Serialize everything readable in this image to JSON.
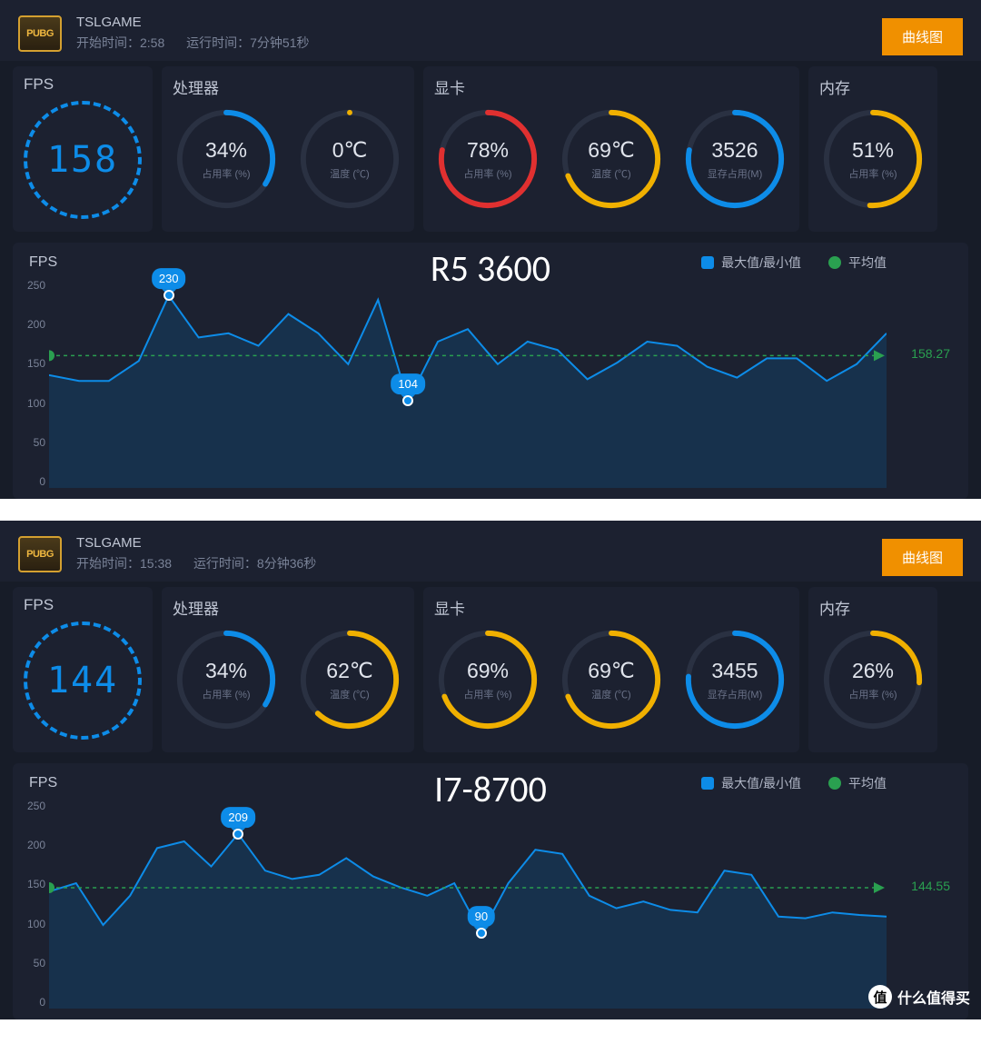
{
  "panels": [
    {
      "header": {
        "game": "TSLGAME",
        "start_label": "开始时间：",
        "start_time": "2:58",
        "run_label": "运行时间：",
        "run_time": "7分钟51秒",
        "button": "曲线图"
      },
      "cpu_overlay": "R5 3600",
      "fps_gauge": {
        "title": "FPS",
        "value": "158"
      },
      "groups": [
        {
          "title": "处理器",
          "gauges": [
            {
              "value": "34%",
              "label": "占用率 (%)",
              "pct": 34,
              "color": "#0d8ce8"
            },
            {
              "value": "0℃",
              "label": "温度 (℃)",
              "pct": 0,
              "color": "#f0b000"
            }
          ]
        },
        {
          "title": "显卡",
          "gauges": [
            {
              "value": "78%",
              "label": "占用率 (%)",
              "pct": 78,
              "color": "#e03030"
            },
            {
              "value": "69℃",
              "label": "温度 (℃)",
              "pct": 69,
              "color": "#f0b000"
            },
            {
              "value": "3526",
              "label": "显存占用(M)",
              "pct": 78,
              "color": "#0d8ce8"
            }
          ]
        },
        {
          "title": "内存",
          "gauges": [
            {
              "value": "51%",
              "label": "占用率 (%)",
              "pct": 51,
              "color": "#f0b000"
            }
          ]
        }
      ],
      "chart": {
        "title": "FPS",
        "legend_maxmin": "最大值/最小值",
        "legend_avg": "平均值",
        "legend_maxmin_color": "#0d8ce8",
        "legend_avg_color": "#2aa050",
        "y_max": 250,
        "y_ticks": [
          "0",
          "50",
          "100",
          "150",
          "200",
          "250"
        ],
        "avg": 158.27,
        "max_marker": {
          "idx": 4,
          "val": 230
        },
        "min_marker": {
          "idx": 12,
          "val": 104
        },
        "data": [
          135,
          128,
          128,
          152,
          230,
          180,
          185,
          170,
          208,
          185,
          148,
          225,
          104,
          175,
          190,
          148,
          175,
          165,
          130,
          150,
          175,
          170,
          145,
          132,
          155,
          155,
          128,
          148,
          185
        ],
        "line_color": "#0d8ce8",
        "fill_color": "rgba(13,80,130,0.35)"
      }
    },
    {
      "header": {
        "game": "TSLGAME",
        "start_label": "开始时间：",
        "start_time": "15:38",
        "run_label": "运行时间：",
        "run_time": "8分钟36秒",
        "button": "曲线图"
      },
      "cpu_overlay": "I7-8700",
      "fps_gauge": {
        "title": "FPS",
        "value": "144"
      },
      "groups": [
        {
          "title": "处理器",
          "gauges": [
            {
              "value": "34%",
              "label": "占用率 (%)",
              "pct": 34,
              "color": "#0d8ce8"
            },
            {
              "value": "62℃",
              "label": "温度 (℃)",
              "pct": 62,
              "color": "#f0b000"
            }
          ]
        },
        {
          "title": "显卡",
          "gauges": [
            {
              "value": "69%",
              "label": "占用率 (%)",
              "pct": 69,
              "color": "#f0b000"
            },
            {
              "value": "69℃",
              "label": "温度 (℃)",
              "pct": 69,
              "color": "#f0b000"
            },
            {
              "value": "3455",
              "label": "显存占用(M)",
              "pct": 76,
              "color": "#0d8ce8"
            }
          ]
        },
        {
          "title": "内存",
          "gauges": [
            {
              "value": "26%",
              "label": "占用率 (%)",
              "pct": 26,
              "color": "#f0b000"
            }
          ]
        }
      ],
      "chart": {
        "title": "FPS",
        "legend_maxmin": "最大值/最小值",
        "legend_avg": "平均值",
        "legend_maxmin_color": "#0d8ce8",
        "legend_avg_color": "#2aa050",
        "y_max": 250,
        "y_ticks": [
          "0",
          "50",
          "100",
          "150",
          "200",
          "250"
        ],
        "avg": 144.55,
        "max_marker": {
          "idx": 7,
          "val": 209
        },
        "min_marker": {
          "idx": 16,
          "val": 90
        },
        "data": [
          140,
          150,
          100,
          135,
          192,
          200,
          170,
          209,
          165,
          155,
          160,
          180,
          158,
          145,
          135,
          150,
          90,
          150,
          190,
          185,
          135,
          120,
          128,
          118,
          115,
          165,
          160,
          110,
          108,
          115,
          112,
          110
        ],
        "line_color": "#0d8ce8",
        "fill_color": "rgba(13,80,130,0.35)"
      }
    }
  ],
  "watermark": "什么值得买",
  "watermark_char": "值"
}
